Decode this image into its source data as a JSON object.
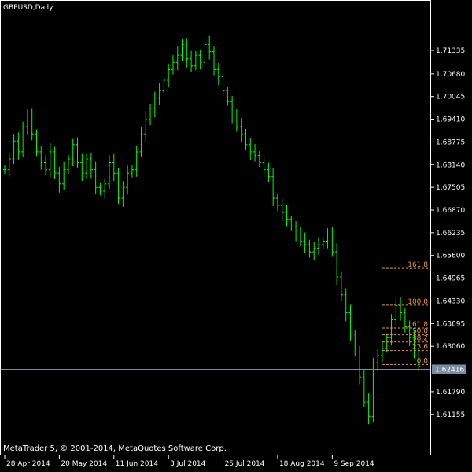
{
  "window": {
    "title": "GBPUSD,Daily"
  },
  "footer": {
    "copyright": "MetaTrader 5, © 2001-2014, MetaQuotes Software Corp."
  },
  "colors": {
    "background": "#000000",
    "frame": "#ffffff",
    "candle": "#00ff00",
    "fib_line": "#e8953c",
    "fib_text": "#e8953c",
    "price_line": "#7a8da0",
    "price_box": "#7a8da0"
  },
  "chart_data": {
    "type": "line",
    "title": "GBPUSD,Daily",
    "y_axis": {
      "ylim": [
        1.6005,
        1.727
      ],
      "tick_labels": [
        "1.71335",
        "1.70680",
        "1.70045",
        "1.69410",
        "1.68775",
        "1.68140",
        "1.67505",
        "1.66870",
        "1.66235",
        "1.65600",
        "1.64965",
        "1.64330",
        "1.63695",
        "1.63060",
        "1.62416",
        "1.61790",
        "1.61155"
      ]
    },
    "x_axis": {
      "tick_labels": [
        "28 Apr 2014",
        "20 May 2014",
        "11 Jun 2014",
        "3 Jul 2014",
        "25 Jul 2014",
        "18 Aug 2014",
        "9 Sep 2014"
      ]
    },
    "current_price": "1.62416",
    "series": [
      {
        "values": [
          1.68,
          1.683,
          1.688,
          1.685,
          1.692,
          1.695,
          1.69,
          1.685,
          1.682,
          1.68,
          1.685,
          1.679,
          1.676,
          1.68,
          1.683,
          1.687,
          1.682,
          1.679,
          1.683,
          1.68,
          1.675,
          1.674,
          1.676,
          1.682,
          1.679,
          1.672,
          1.675,
          1.679,
          1.68,
          1.685,
          1.69,
          1.694,
          1.697,
          1.7,
          1.702,
          1.705,
          1.708,
          1.71,
          1.712,
          1.715,
          1.711,
          1.709,
          1.712,
          1.71,
          1.715,
          1.713,
          1.708,
          1.706,
          1.702,
          1.699,
          1.695,
          1.692,
          1.69,
          1.687,
          1.685,
          1.684,
          1.682,
          1.68,
          1.678,
          1.672,
          1.67,
          1.668,
          1.666,
          1.664,
          1.662,
          1.66,
          1.659,
          1.657,
          1.658,
          1.659,
          1.66,
          1.662,
          1.657,
          1.65,
          1.645,
          1.64,
          1.634,
          1.629,
          1.622,
          1.615,
          1.611,
          1.626,
          1.628,
          1.63,
          1.633,
          1.638,
          1.642,
          1.64,
          1.636,
          1.633,
          1.629,
          1.625
        ]
      }
    ],
    "fibonacci": [
      {
        "label": "161.8",
        "price": 1.6524
      },
      {
        "label": "100.0",
        "price": 1.6421
      },
      {
        "label": "61.8",
        "price": 1.6357
      },
      {
        "label": "50.0",
        "price": 1.6338
      },
      {
        "label": "38.2",
        "price": 1.6318
      },
      {
        "label": "23.6",
        "price": 1.6294
      },
      {
        "label": "0.0",
        "price": 1.6255
      }
    ]
  }
}
